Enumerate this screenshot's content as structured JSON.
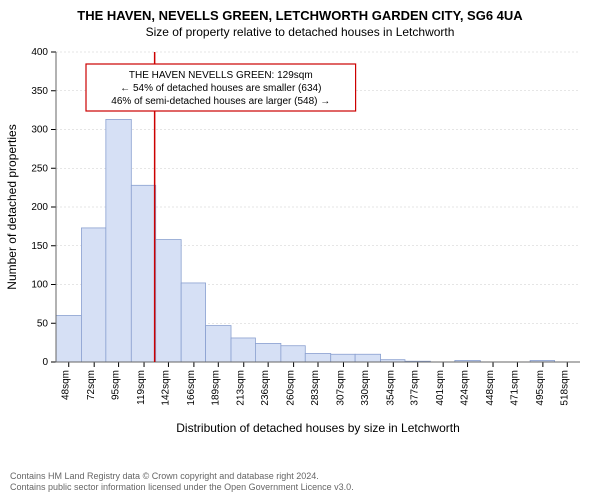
{
  "title_main": "THE HAVEN, NEVELLS GREEN, LETCHWORTH GARDEN CITY, SG6 4UA",
  "title_sub": "Size of property relative to detached houses in Letchworth",
  "xlabel": "Distribution of detached houses by size in Letchworth",
  "ylabel": "Number of detached properties",
  "annotation_box": {
    "lines": [
      "THE HAVEN NEVELLS GREEN: 129sqm",
      "← 54% of detached houses are smaller (634)",
      "46% of semi-detached houses are larger (548) →"
    ],
    "border_color": "#cc0000",
    "bg_color": "#ffffff",
    "text_color": "#000000",
    "fontsize": 10
  },
  "chart": {
    "type": "histogram",
    "bar_fill": "#d6e0f5",
    "bar_stroke": "#8aa0d0",
    "grid_color": "#cccccc",
    "axis_color": "#666666",
    "tick_color": "#000000",
    "background_color": "#ffffff",
    "marker_line_color": "#cc0000",
    "marker_x_value": 129,
    "ylim": [
      0,
      400
    ],
    "ytick_step": 50,
    "x_ticks": [
      48,
      72,
      95,
      119,
      142,
      166,
      189,
      213,
      236,
      260,
      283,
      307,
      330,
      354,
      377,
      401,
      424,
      448,
      471,
      495,
      518
    ],
    "x_tick_suffix": "sqm",
    "x_min": 36,
    "x_max": 530,
    "bars": [
      {
        "x0": 36,
        "x1": 60,
        "v": 60
      },
      {
        "x0": 60,
        "x1": 83,
        "v": 173
      },
      {
        "x0": 83,
        "x1": 107,
        "v": 313
      },
      {
        "x0": 107,
        "x1": 130,
        "v": 228
      },
      {
        "x0": 130,
        "x1": 154,
        "v": 158
      },
      {
        "x0": 154,
        "x1": 177,
        "v": 102
      },
      {
        "x0": 177,
        "x1": 201,
        "v": 47
      },
      {
        "x0": 201,
        "x1": 224,
        "v": 31
      },
      {
        "x0": 224,
        "x1": 248,
        "v": 24
      },
      {
        "x0": 248,
        "x1": 271,
        "v": 21
      },
      {
        "x0": 271,
        "x1": 295,
        "v": 11
      },
      {
        "x0": 295,
        "x1": 318,
        "v": 10
      },
      {
        "x0": 318,
        "x1": 342,
        "v": 10
      },
      {
        "x0": 342,
        "x1": 365,
        "v": 3
      },
      {
        "x0": 365,
        "x1": 389,
        "v": 1
      },
      {
        "x0": 389,
        "x1": 412,
        "v": 0
      },
      {
        "x0": 412,
        "x1": 436,
        "v": 2
      },
      {
        "x0": 436,
        "x1": 459,
        "v": 0
      },
      {
        "x0": 459,
        "x1": 483,
        "v": 0
      },
      {
        "x0": 483,
        "x1": 506,
        "v": 2
      },
      {
        "x0": 506,
        "x1": 530,
        "v": 0
      }
    ],
    "tick_fontsize": 10,
    "label_fontsize": 12
  },
  "footer_line1": "Contains HM Land Registry data © Crown copyright and database right 2024.",
  "footer_line2": "Contains public sector information licensed under the Open Government Licence v3.0."
}
